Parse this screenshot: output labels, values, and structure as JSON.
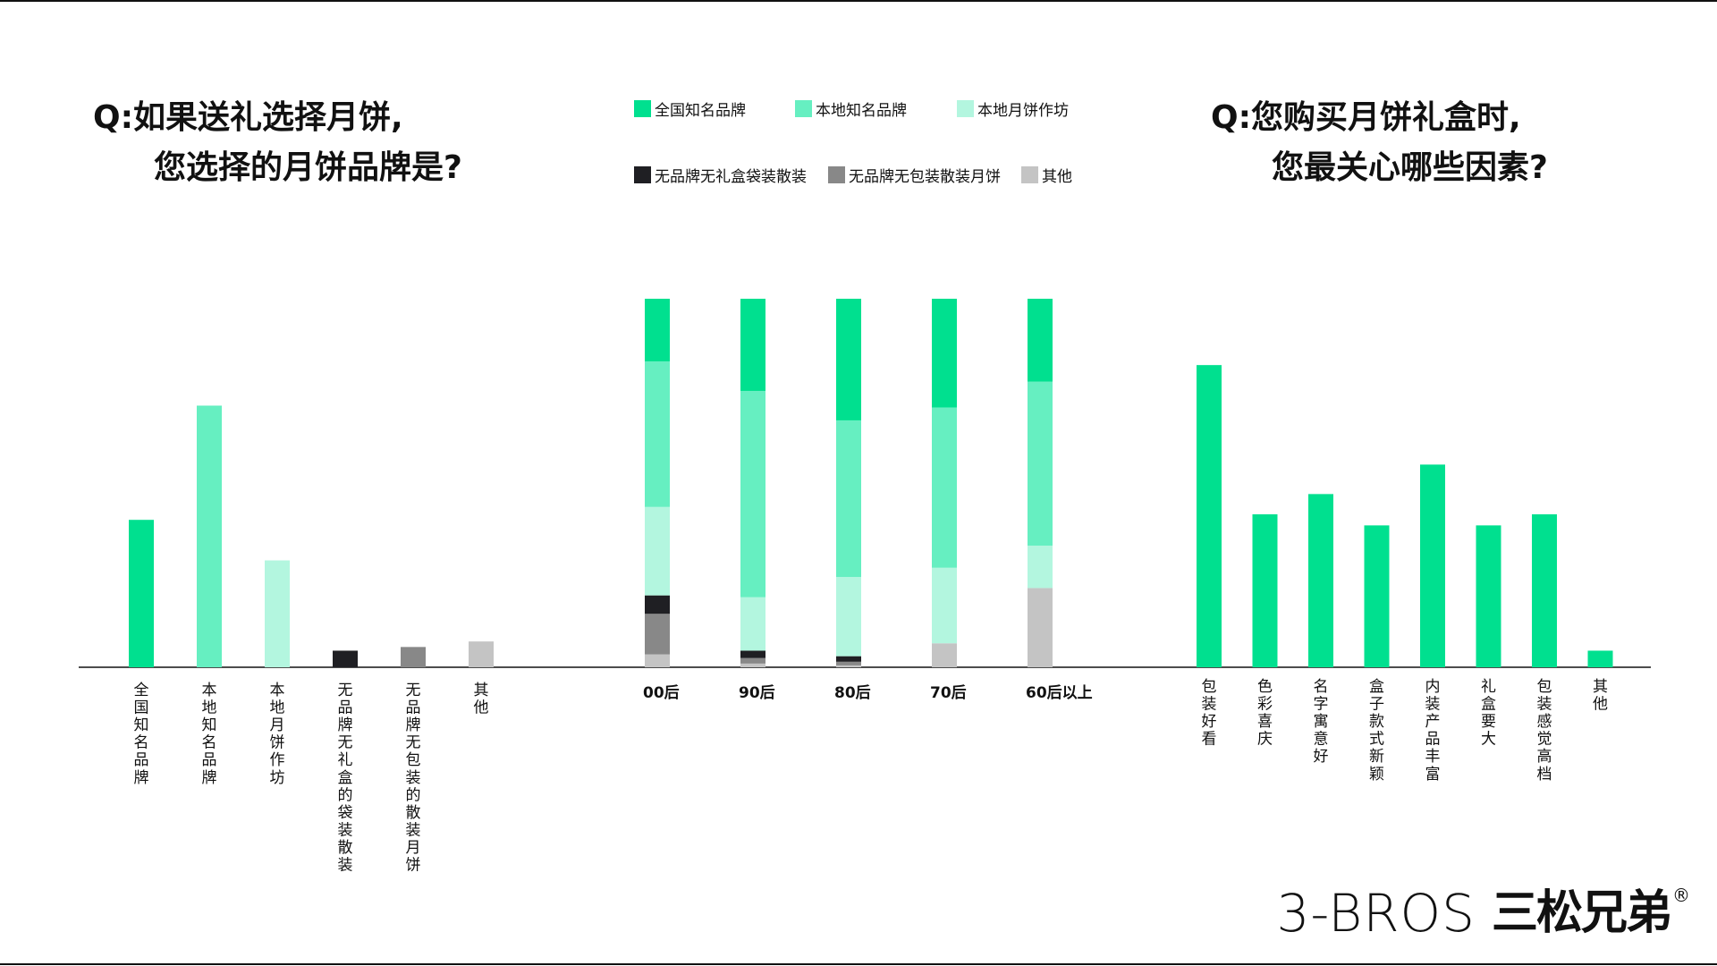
{
  "questions": {
    "left": {
      "prefix": "Q:",
      "line1": "如果送礼选择月饼,",
      "line2": "您选择的月饼品牌是?"
    },
    "right": {
      "prefix": "Q:",
      "line1": "您购买月饼礼盒时,",
      "line2": "您最关心哪些因素?"
    }
  },
  "legend": [
    {
      "label": "全国知名品牌",
      "color": "#00e08f"
    },
    {
      "label": "本地知名品牌",
      "color": "#66efc1"
    },
    {
      "label": "本地月饼作坊",
      "color": "#b3f6df"
    },
    {
      "label": "无品牌无礼盒袋装散装",
      "color": "#1f1f23"
    },
    {
      "label": "无品牌无包装散装月饼",
      "color": "#888888"
    },
    {
      "label": "其他",
      "color": "#c4c4c4"
    }
  ],
  "brand": {
    "en": "3-BROS",
    "cn": "三松兄弟",
    "reg": "®"
  },
  "chart_data": [
    {
      "type": "bar",
      "categories": [
        "全国知名品牌",
        "本地知名品牌",
        "本地月饼作坊",
        "无品牌无礼盒的袋装散装",
        "无品牌无包装的散装月饼",
        "其他"
      ],
      "values": [
        40,
        71,
        29,
        4.5,
        5.5,
        7
      ],
      "colors": [
        "#00e08f",
        "#66efc1",
        "#b3f6df",
        "#1f1f23",
        "#888888",
        "#c4c4c4"
      ],
      "ylim": [
        0,
        100
      ],
      "grid": false
    },
    {
      "type": "bar",
      "stacked": true,
      "categories": [
        "00后",
        "90后",
        "80后",
        "70后",
        "60后以上"
      ],
      "series": [
        {
          "name": "全国知名品牌",
          "values": [
            17,
            25,
            33,
            29.5,
            22.5
          ]
        },
        {
          "name": "本地知名品牌",
          "values": [
            39.5,
            56,
            42.5,
            43.5,
            44.5
          ]
        },
        {
          "name": "本地月饼作坊",
          "values": [
            24,
            14.5,
            21.5,
            20.5,
            11.5
          ]
        },
        {
          "name": "无品牌无礼盒袋装散装",
          "values": [
            5,
            2,
            1.5,
            0,
            0
          ]
        },
        {
          "name": "无品牌无包装散装月饼",
          "values": [
            11,
            1.5,
            1,
            0,
            0
          ]
        },
        {
          "name": "其他",
          "values": [
            3.5,
            1,
            0.5,
            6.5,
            21.5
          ]
        }
      ],
      "ylim": [
        0,
        100
      ],
      "legend": "top",
      "grid": false
    },
    {
      "type": "bar",
      "categories": [
        "包装好看",
        "色彩喜庆",
        "名字寓意好",
        "盒子款式新颖",
        "内装产品丰富",
        "礼盒要大",
        "包装感觉高档",
        "其他"
      ],
      "values": [
        82,
        41.5,
        47,
        38.5,
        55,
        38.5,
        41.5,
        4.5
      ],
      "color": "#00e08f",
      "ylim": [
        0,
        100
      ],
      "grid": false
    }
  ]
}
